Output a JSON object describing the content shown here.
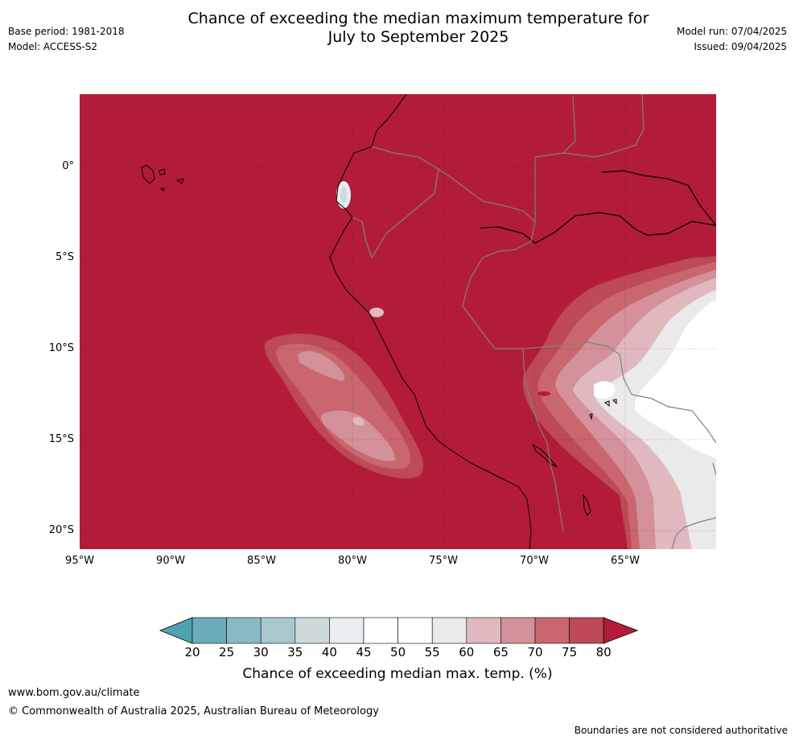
{
  "header": {
    "title_line1": "Chance of exceeding the median maximum temperature for",
    "title_line2": "July to September 2025",
    "base_period": "Base period: 1981-2018",
    "model": "Model: ACCESS-S2",
    "model_run": "Model run: 07/04/2025",
    "issued": "Issued: 09/04/2025"
  },
  "map": {
    "lat_labels": [
      "0°",
      "5°S",
      "10°S",
      "15°S",
      "20°S"
    ],
    "lon_labels": [
      "95°W",
      "90°W",
      "85°W",
      "80°W",
      "75°W",
      "70°W",
      "65°W"
    ],
    "dominant_fill": "#b31c38",
    "coastline_color": "#000000",
    "border_color": "#808080"
  },
  "colorbar": {
    "ticks": [
      "20",
      "25",
      "30",
      "35",
      "40",
      "45",
      "50",
      "55",
      "60",
      "65",
      "70",
      "75",
      "80"
    ],
    "colors": [
      "#4fa3b0",
      "#6aacb9",
      "#8bb9c4",
      "#a9c8cd",
      "#cdd9db",
      "#e8eef0",
      "#ffffff",
      "#ffffff",
      "#ebe9e9",
      "#e0b9bf",
      "#d4919a",
      "#c96670",
      "#bd4a56",
      "#b31c38"
    ],
    "title": "Chance of exceeding median max. temp. (%)"
  },
  "footer": {
    "website": "www.bom.gov.au/climate",
    "copyright": "© Commonwealth of Australia 2025, Australian Bureau of Meteorology",
    "disclaimer": "Boundaries are not considered authoritative"
  }
}
